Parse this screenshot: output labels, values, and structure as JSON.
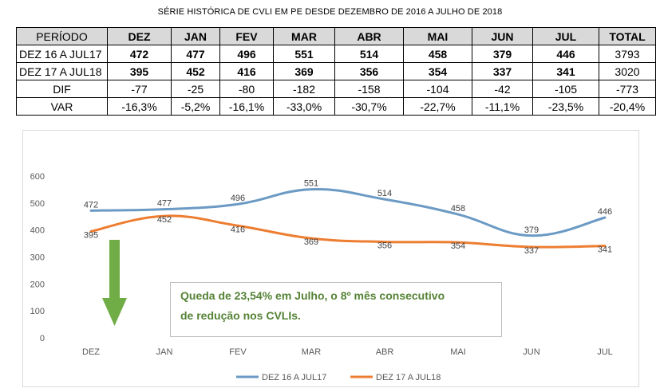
{
  "title": "SÉRIE HISTÓRICA DE CVLI EM PE DESDE DEZEMBRO DE 2016 A JULHO DE 2018",
  "table": {
    "headers": [
      "PERÍODO",
      "DEZ",
      "JAN",
      "FEV",
      "MAR",
      "ABR",
      "MAI",
      "JUN",
      "JUL",
      "TOTAL"
    ],
    "rows": [
      {
        "label": "DEZ 16 A  JUL17",
        "cells": [
          "472",
          "477",
          "496",
          "551",
          "514",
          "458",
          "379",
          "446",
          "3793"
        ]
      },
      {
        "label": "DEZ 17 A JUL18",
        "cells": [
          "395",
          "452",
          "416",
          "369",
          "356",
          "354",
          "337",
          "341",
          "3020"
        ]
      },
      {
        "label": "DIF",
        "cells": [
          "-77",
          "-25",
          "-80",
          "-182",
          "-158",
          "-104",
          "-42",
          "-105",
          "-773"
        ]
      },
      {
        "label": "VAR",
        "cells": [
          "-16,3%",
          "-5,2%",
          "-16,1%",
          "-33,0%",
          "-30,7%",
          "-22,7%",
          "-11,1%",
          "-23,5%",
          "-20,4%"
        ]
      }
    ]
  },
  "chart_data": {
    "type": "line",
    "categories": [
      "DEZ",
      "JAN",
      "FEV",
      "MAR",
      "ABR",
      "MAI",
      "JUN",
      "JUL"
    ],
    "series": [
      {
        "name": "DEZ 16 A  JUL17",
        "color": "#6b9ac4",
        "values": [
          472,
          477,
          496,
          551,
          514,
          458,
          379,
          446
        ]
      },
      {
        "name": "DEZ 17 A JUL18",
        "color": "#ed7d31",
        "values": [
          395,
          452,
          416,
          369,
          356,
          354,
          337,
          341
        ]
      }
    ],
    "y_ticks": [
      "0",
      "100",
      "200",
      "300",
      "400",
      "500",
      "600"
    ],
    "ylim": [
      0,
      600
    ],
    "smooth": true,
    "gridlines": false,
    "legend_position": "bottom"
  },
  "annotation": {
    "line1": "Queda de 23,54% em Julho, o 8º mês consecutivo",
    "line2": "de redução nos CVLIs."
  },
  "arrow": {
    "color": "#70ad47",
    "icon": "down-arrow-icon"
  }
}
